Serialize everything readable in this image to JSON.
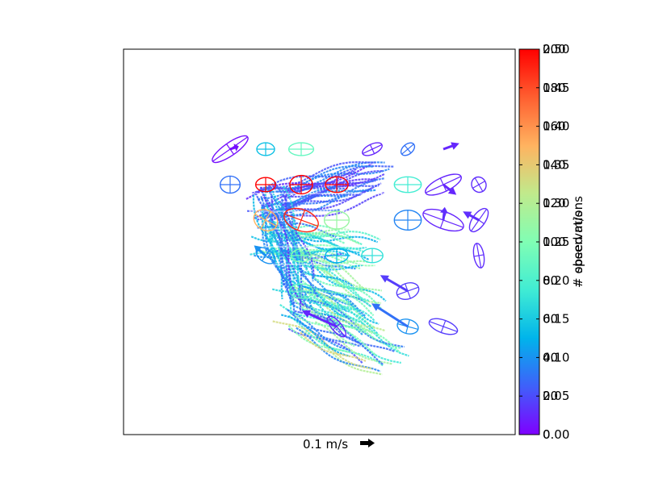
{
  "chart_data": {
    "type": "scatter",
    "title": "",
    "xlabel": "",
    "ylabel": "",
    "quiver_key": {
      "label": "0.1 m/s"
    },
    "colorbar": {
      "colormap": "rainbow",
      "colors": [
        "#7f00ff",
        "#3f60fa",
        "#00b4eb",
        "#40ecd4",
        "#80feb4",
        "#c0ea8c",
        "#ffb360",
        "#ff5f30",
        "#ff0000"
      ],
      "labels": [
        "speed m/s",
        "# observations"
      ],
      "ticks_speed": [
        "0.00",
        "0.05",
        "0.10",
        "0.15",
        "0.20",
        "0.25",
        "0.30",
        "0.35",
        "0.40",
        "0.45",
        "0.50"
      ],
      "ticks_observations": [
        "0",
        "20",
        "40",
        "60",
        "80",
        "100",
        "120",
        "140",
        "160",
        "180",
        "200"
      ]
    },
    "grid_ellipses": [
      {
        "i": 3,
        "j": 2,
        "rx": 0.6,
        "ry": 0.18,
        "angle": -35,
        "color": 0.02
      },
      {
        "i": 4,
        "j": 2,
        "rx": 0.25,
        "ry": 0.18,
        "angle": 0,
        "color": 0.28
      },
      {
        "i": 5,
        "j": 2,
        "rx": 0.35,
        "ry": 0.18,
        "angle": 0,
        "color": 0.45
      },
      {
        "i": 7,
        "j": 2,
        "rx": 0.3,
        "ry": 0.14,
        "angle": -25,
        "color": 0.05
      },
      {
        "i": 8,
        "j": 2,
        "rx": 0.22,
        "ry": 0.14,
        "angle": -40,
        "color": 0.15
      },
      {
        "i": 3,
        "j": 3,
        "rx": 0.28,
        "ry": 0.24,
        "angle": 0,
        "color": 0.15
      },
      {
        "i": 4,
        "j": 3,
        "rx": 0.28,
        "ry": 0.2,
        "angle": 0,
        "color": 1.0
      },
      {
        "i": 5,
        "j": 3,
        "rx": 0.32,
        "ry": 0.26,
        "angle": 0,
        "color": 1.0
      },
      {
        "i": 6,
        "j": 3,
        "rx": 0.32,
        "ry": 0.22,
        "angle": 0,
        "color": 1.0
      },
      {
        "i": 8,
        "j": 3,
        "rx": 0.38,
        "ry": 0.22,
        "angle": 0,
        "color": 0.38
      },
      {
        "i": 9,
        "j": 3,
        "rx": 0.55,
        "ry": 0.2,
        "angle": -25,
        "color": 0.05
      },
      {
        "i": 10,
        "j": 3,
        "rx": 0.22,
        "ry": 0.2,
        "angle": 60,
        "color": 0.06
      },
      {
        "i": 4,
        "j": 4,
        "rx": 0.35,
        "ry": 0.28,
        "angle": 30,
        "color": 0.75
      },
      {
        "i": 5,
        "j": 4,
        "rx": 0.5,
        "ry": 0.3,
        "angle": 20,
        "color": 0.95
      },
      {
        "i": 6,
        "j": 4,
        "rx": 0.35,
        "ry": 0.25,
        "angle": 0,
        "color": 0.55
      },
      {
        "i": 8,
        "j": 4,
        "rx": 0.38,
        "ry": 0.28,
        "angle": 0,
        "color": 0.18
      },
      {
        "i": 9,
        "j": 4,
        "rx": 0.6,
        "ry": 0.24,
        "angle": 20,
        "color": 0.05
      },
      {
        "i": 10,
        "j": 4,
        "rx": 0.38,
        "ry": 0.18,
        "angle": -55,
        "color": 0.06
      },
      {
        "i": 4,
        "j": 5,
        "rx": 0.3,
        "ry": 0.18,
        "angle": 35,
        "color": 0.2
      },
      {
        "i": 5,
        "j": 5,
        "rx": 0.28,
        "ry": 0.18,
        "angle": 0,
        "color": 0.5
      },
      {
        "i": 6,
        "j": 5,
        "rx": 0.32,
        "ry": 0.2,
        "angle": 0,
        "color": 0.25
      },
      {
        "i": 7,
        "j": 5,
        "rx": 0.3,
        "ry": 0.2,
        "angle": 0,
        "color": 0.35
      },
      {
        "i": 10,
        "j": 5,
        "rx": 0.35,
        "ry": 0.14,
        "angle": 80,
        "color": 0.06
      },
      {
        "i": 5,
        "j": 6,
        "rx": 0.33,
        "ry": 0.2,
        "angle": 0,
        "color": 0.45
      },
      {
        "i": 8,
        "j": 6,
        "rx": 0.32,
        "ry": 0.22,
        "angle": -20,
        "color": 0.08
      },
      {
        "i": 6,
        "j": 7,
        "rx": 0.36,
        "ry": 0.14,
        "angle": 50,
        "color": 0.05
      },
      {
        "i": 8,
        "j": 7,
        "rx": 0.3,
        "ry": 0.2,
        "angle": 15,
        "color": 0.2
      },
      {
        "i": 9,
        "j": 7,
        "rx": 0.42,
        "ry": 0.18,
        "angle": 20,
        "color": 0.08
      }
    ],
    "mean_arrows": [
      {
        "i": 3,
        "j": 2,
        "u": 0.06,
        "v": 0.02,
        "color": 0.02
      },
      {
        "i": 9,
        "j": 2,
        "u": 0.11,
        "v": 0.04,
        "color": 0.05
      },
      {
        "i": 9,
        "j": 3,
        "u": 0.09,
        "v": -0.07,
        "color": 0.05
      },
      {
        "i": 10,
        "j": 4,
        "u": -0.11,
        "v": 0.06,
        "color": 0.06
      },
      {
        "i": 9,
        "j": 4,
        "u": 0.01,
        "v": 0.09,
        "color": 0.06
      },
      {
        "i": 4,
        "j": 5,
        "u": -0.08,
        "v": 0.07,
        "color": 0.2
      },
      {
        "i": 8,
        "j": 6,
        "u": -0.19,
        "v": 0.11,
        "color": 0.08
      },
      {
        "i": 6,
        "j": 7,
        "u": -0.24,
        "v": 0.11,
        "color": 0.05
      },
      {
        "i": 8,
        "j": 7,
        "u": -0.25,
        "v": 0.16,
        "color": 0.15
      }
    ]
  }
}
